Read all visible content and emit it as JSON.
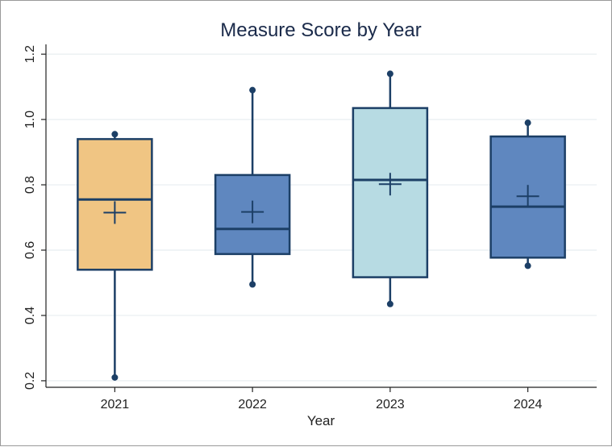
{
  "chart_data": {
    "type": "box",
    "title": "Measure Score by Year",
    "xlabel": "Year",
    "ylabel": "",
    "ylim": [
      0.18,
      1.23
    ],
    "yticks": [
      0.2,
      0.4,
      0.6,
      0.8,
      1.0,
      1.2
    ],
    "ytick_labels": [
      "0.2",
      "0.4",
      "0.6",
      "0.8",
      "1.0",
      "1.2"
    ],
    "grid": true,
    "categories": [
      "2021",
      "2022",
      "2023",
      "2024"
    ],
    "boxes": [
      {
        "category": "2021",
        "min": 0.21,
        "q1": 0.54,
        "median": 0.755,
        "q3": 0.94,
        "max": 0.955,
        "mean": 0.715,
        "color": "#f0c583"
      },
      {
        "category": "2022",
        "min": 0.495,
        "q1": 0.588,
        "median": 0.665,
        "q3": 0.83,
        "max": 1.09,
        "mean": 0.717,
        "color": "#5f87bf"
      },
      {
        "category": "2023",
        "min": 0.435,
        "q1": 0.517,
        "median": 0.815,
        "q3": 1.035,
        "max": 1.14,
        "mean": 0.802,
        "color": "#b7dbe3"
      },
      {
        "category": "2024",
        "min": 0.552,
        "q1": 0.577,
        "median": 0.733,
        "q3": 0.948,
        "max": 0.99,
        "mean": 0.765,
        "color": "#5f87bf"
      }
    ],
    "stroke_color": "#1c3f66"
  }
}
